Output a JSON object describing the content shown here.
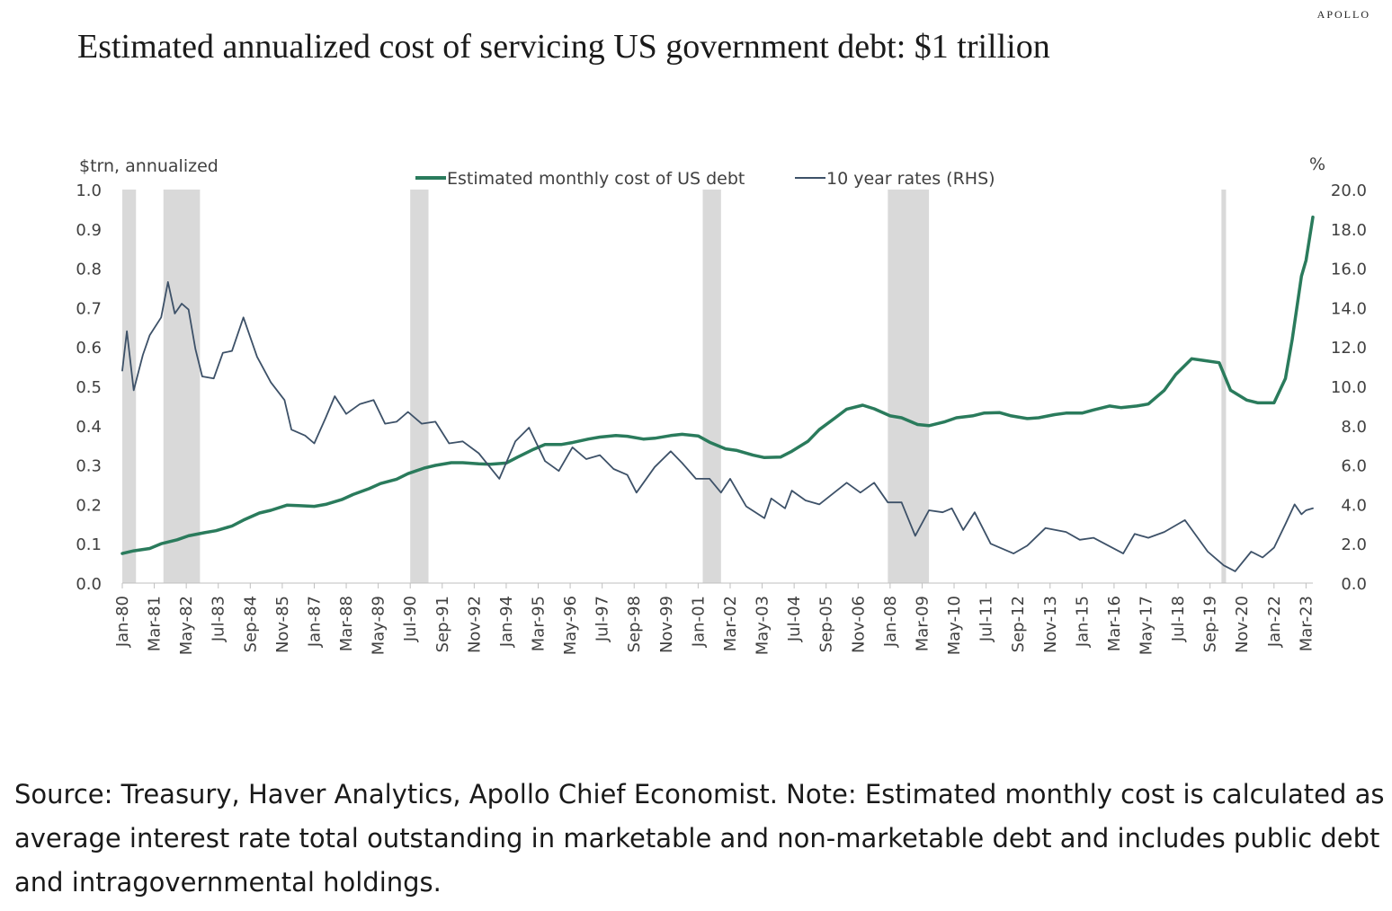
{
  "brand": "APOLLO",
  "title": "Estimated annualized cost of servicing US government debt: $1 trillion",
  "source_note": "Source: Treasury, Haver Analytics, Apollo Chief Economist. Note: Estimated monthly cost is calculated as average interest rate total outstanding in marketable and non-marketable debt and includes public debt and intragovernmental holdings.",
  "colors": {
    "cost_line": "#2a7b5c",
    "rate_line": "#3d5168",
    "recession": "#d9d9d9"
  },
  "chart_data": {
    "type": "line",
    "ylabel_left": "$trn, annualized",
    "ylabel_right": "%",
    "ylim_left": [
      0,
      1.0
    ],
    "ylim_right": [
      0,
      20
    ],
    "yticks_left": [
      "0.0",
      "0.1",
      "0.2",
      "0.3",
      "0.4",
      "0.5",
      "0.6",
      "0.7",
      "0.8",
      "0.9",
      "1.0"
    ],
    "yticks_right": [
      "0.0",
      "2.0",
      "4.0",
      "6.0",
      "8.0",
      "10.0",
      "12.0",
      "14.0",
      "16.0",
      "18.0",
      "20.0"
    ],
    "xlim": [
      "1980-01",
      "2023-06"
    ],
    "x_tick_labels": [
      {
        "date": "1980-01",
        "label": "Jan-80"
      },
      {
        "date": "1981-03",
        "label": "Mar-81"
      },
      {
        "date": "1982-05",
        "label": "May-82"
      },
      {
        "date": "1983-07",
        "label": "Jul-83"
      },
      {
        "date": "1984-09",
        "label": "Sep-84"
      },
      {
        "date": "1985-11",
        "label": "Nov-85"
      },
      {
        "date": "1987-01",
        "label": "Jan-87"
      },
      {
        "date": "1988-03",
        "label": "Mar-88"
      },
      {
        "date": "1989-05",
        "label": "May-89"
      },
      {
        "date": "1990-07",
        "label": "Jul-90"
      },
      {
        "date": "1991-09",
        "label": "Sep-91"
      },
      {
        "date": "1992-11",
        "label": "Nov-92"
      },
      {
        "date": "1994-01",
        "label": "Jan-94"
      },
      {
        "date": "1995-03",
        "label": "Mar-95"
      },
      {
        "date": "1996-05",
        "label": "May-96"
      },
      {
        "date": "1997-07",
        "label": "Jul-97"
      },
      {
        "date": "1998-09",
        "label": "Sep-98"
      },
      {
        "date": "1999-11",
        "label": "Nov-99"
      },
      {
        "date": "2001-01",
        "label": "Jan-01"
      },
      {
        "date": "2002-03",
        "label": "Mar-02"
      },
      {
        "date": "2003-05",
        "label": "May-03"
      },
      {
        "date": "2004-07",
        "label": "Jul-04"
      },
      {
        "date": "2005-09",
        "label": "Sep-05"
      },
      {
        "date": "2006-11",
        "label": "Nov-06"
      },
      {
        "date": "2008-01",
        "label": "Jan-08"
      },
      {
        "date": "2009-03",
        "label": "Mar-09"
      },
      {
        "date": "2010-05",
        "label": "May-10"
      },
      {
        "date": "2011-07",
        "label": "Jul-11"
      },
      {
        "date": "2012-09",
        "label": "Sep-12"
      },
      {
        "date": "2013-11",
        "label": "Nov-13"
      },
      {
        "date": "2015-01",
        "label": "Jan-15"
      },
      {
        "date": "2016-03",
        "label": "Mar-16"
      },
      {
        "date": "2017-05",
        "label": "May-17"
      },
      {
        "date": "2018-07",
        "label": "Jul-18"
      },
      {
        "date": "2019-09",
        "label": "Sep-19"
      },
      {
        "date": "2020-11",
        "label": "Nov-20"
      },
      {
        "date": "2022-01",
        "label": "Jan-22"
      },
      {
        "date": "2023-03",
        "label": "Mar-23"
      }
    ],
    "legend_position": "top-center",
    "grid": false,
    "recessions": [
      [
        "1980-01",
        "1980-07"
      ],
      [
        "1981-07",
        "1982-11"
      ],
      [
        "1990-07",
        "1991-03"
      ],
      [
        "2001-03",
        "2001-11"
      ],
      [
        "2007-12",
        "2009-06"
      ],
      [
        "2020-02",
        "2020-04"
      ]
    ],
    "series": [
      {
        "name": "Estimated monthly cost of US debt",
        "axis": "left",
        "color": "#2a7b5c",
        "points": [
          [
            "1980-01",
            0.075
          ],
          [
            "1980-06",
            0.082
          ],
          [
            "1981-01",
            0.088
          ],
          [
            "1981-06",
            0.1
          ],
          [
            "1982-01",
            0.11
          ],
          [
            "1982-06",
            0.12
          ],
          [
            "1983-01",
            0.128
          ],
          [
            "1983-06",
            0.133
          ],
          [
            "1984-01",
            0.145
          ],
          [
            "1984-06",
            0.16
          ],
          [
            "1985-01",
            0.178
          ],
          [
            "1985-06",
            0.185
          ],
          [
            "1986-01",
            0.198
          ],
          [
            "1986-06",
            0.197
          ],
          [
            "1987-01",
            0.195
          ],
          [
            "1987-06",
            0.2
          ],
          [
            "1988-01",
            0.212
          ],
          [
            "1988-06",
            0.225
          ],
          [
            "1989-01",
            0.24
          ],
          [
            "1989-06",
            0.253
          ],
          [
            "1990-01",
            0.264
          ],
          [
            "1990-06",
            0.278
          ],
          [
            "1991-01",
            0.292
          ],
          [
            "1991-06",
            0.299
          ],
          [
            "1992-01",
            0.306
          ],
          [
            "1992-06",
            0.306
          ],
          [
            "1993-01",
            0.303
          ],
          [
            "1993-06",
            0.302
          ],
          [
            "1994-01",
            0.305
          ],
          [
            "1994-06",
            0.32
          ],
          [
            "1995-01",
            0.34
          ],
          [
            "1995-06",
            0.352
          ],
          [
            "1996-01",
            0.352
          ],
          [
            "1996-06",
            0.357
          ],
          [
            "1997-01",
            0.366
          ],
          [
            "1997-06",
            0.371
          ],
          [
            "1998-01",
            0.375
          ],
          [
            "1998-06",
            0.373
          ],
          [
            "1999-01",
            0.366
          ],
          [
            "1999-06",
            0.368
          ],
          [
            "2000-01",
            0.375
          ],
          [
            "2000-06",
            0.378
          ],
          [
            "2001-01",
            0.374
          ],
          [
            "2001-06",
            0.358
          ],
          [
            "2002-01",
            0.341
          ],
          [
            "2002-06",
            0.337
          ],
          [
            "2003-01",
            0.325
          ],
          [
            "2003-06",
            0.319
          ],
          [
            "2004-01",
            0.32
          ],
          [
            "2004-06",
            0.335
          ],
          [
            "2005-01",
            0.36
          ],
          [
            "2005-06",
            0.39
          ],
          [
            "2006-01",
            0.42
          ],
          [
            "2006-06",
            0.442
          ],
          [
            "2007-01",
            0.452
          ],
          [
            "2007-06",
            0.443
          ],
          [
            "2008-01",
            0.425
          ],
          [
            "2008-06",
            0.42
          ],
          [
            "2009-01",
            0.403
          ],
          [
            "2009-06",
            0.4
          ],
          [
            "2010-01",
            0.41
          ],
          [
            "2010-06",
            0.42
          ],
          [
            "2011-01",
            0.425
          ],
          [
            "2011-06",
            0.432
          ],
          [
            "2012-01",
            0.433
          ],
          [
            "2012-06",
            0.425
          ],
          [
            "2013-01",
            0.418
          ],
          [
            "2013-06",
            0.42
          ],
          [
            "2014-01",
            0.428
          ],
          [
            "2014-06",
            0.432
          ],
          [
            "2015-01",
            0.432
          ],
          [
            "2015-06",
            0.44
          ],
          [
            "2016-01",
            0.45
          ],
          [
            "2016-06",
            0.446
          ],
          [
            "2017-01",
            0.45
          ],
          [
            "2017-06",
            0.455
          ],
          [
            "2018-01",
            0.49
          ],
          [
            "2018-06",
            0.53
          ],
          [
            "2019-01",
            0.57
          ],
          [
            "2019-06",
            0.566
          ],
          [
            "2020-01",
            0.56
          ],
          [
            "2020-06",
            0.49
          ],
          [
            "2021-01",
            0.465
          ],
          [
            "2021-06",
            0.458
          ],
          [
            "2022-01",
            0.458
          ],
          [
            "2022-06",
            0.52
          ],
          [
            "2022-09",
            0.62
          ],
          [
            "2023-01",
            0.78
          ],
          [
            "2023-03",
            0.82
          ],
          [
            "2023-06",
            0.93
          ]
        ]
      },
      {
        "name": "10 year rates (RHS)",
        "axis": "right",
        "color": "#3d5168",
        "points": [
          [
            "1980-01",
            10.8
          ],
          [
            "1980-03",
            12.8
          ],
          [
            "1980-06",
            9.8
          ],
          [
            "1980-10",
            11.6
          ],
          [
            "1981-01",
            12.6
          ],
          [
            "1981-06",
            13.5
          ],
          [
            "1981-09",
            15.3
          ],
          [
            "1981-12",
            13.7
          ],
          [
            "1982-03",
            14.2
          ],
          [
            "1982-06",
            13.9
          ],
          [
            "1982-09",
            11.9
          ],
          [
            "1982-12",
            10.5
          ],
          [
            "1983-05",
            10.4
          ],
          [
            "1983-09",
            11.7
          ],
          [
            "1984-01",
            11.8
          ],
          [
            "1984-06",
            13.5
          ],
          [
            "1984-12",
            11.5
          ],
          [
            "1985-06",
            10.2
          ],
          [
            "1985-12",
            9.3
          ],
          [
            "1986-03",
            7.8
          ],
          [
            "1986-09",
            7.5
          ],
          [
            "1987-01",
            7.1
          ],
          [
            "1987-06",
            8.4
          ],
          [
            "1987-10",
            9.5
          ],
          [
            "1988-03",
            8.6
          ],
          [
            "1988-09",
            9.1
          ],
          [
            "1989-03",
            9.3
          ],
          [
            "1989-08",
            8.1
          ],
          [
            "1990-01",
            8.2
          ],
          [
            "1990-06",
            8.7
          ],
          [
            "1990-12",
            8.1
          ],
          [
            "1991-06",
            8.2
          ],
          [
            "1991-12",
            7.1
          ],
          [
            "1992-06",
            7.2
          ],
          [
            "1993-01",
            6.6
          ],
          [
            "1993-10",
            5.3
          ],
          [
            "1994-05",
            7.2
          ],
          [
            "1994-11",
            7.9
          ],
          [
            "1995-06",
            6.2
          ],
          [
            "1995-12",
            5.7
          ],
          [
            "1996-06",
            6.9
          ],
          [
            "1996-12",
            6.3
          ],
          [
            "1997-06",
            6.5
          ],
          [
            "1997-12",
            5.8
          ],
          [
            "1998-06",
            5.5
          ],
          [
            "1998-10",
            4.6
          ],
          [
            "1999-06",
            5.9
          ],
          [
            "2000-01",
            6.7
          ],
          [
            "2000-06",
            6.1
          ],
          [
            "2000-12",
            5.3
          ],
          [
            "2001-06",
            5.3
          ],
          [
            "2001-11",
            4.6
          ],
          [
            "2002-03",
            5.3
          ],
          [
            "2002-10",
            3.9
          ],
          [
            "2003-06",
            3.3
          ],
          [
            "2003-09",
            4.3
          ],
          [
            "2004-03",
            3.8
          ],
          [
            "2004-06",
            4.7
          ],
          [
            "2004-12",
            4.2
          ],
          [
            "2005-06",
            4.0
          ],
          [
            "2006-06",
            5.1
          ],
          [
            "2006-12",
            4.6
          ],
          [
            "2007-06",
            5.1
          ],
          [
            "2007-12",
            4.1
          ],
          [
            "2008-06",
            4.1
          ],
          [
            "2008-12",
            2.4
          ],
          [
            "2009-06",
            3.7
          ],
          [
            "2009-12",
            3.6
          ],
          [
            "2010-04",
            3.8
          ],
          [
            "2010-09",
            2.7
          ],
          [
            "2011-02",
            3.6
          ],
          [
            "2011-09",
            2.0
          ],
          [
            "2012-07",
            1.5
          ],
          [
            "2013-01",
            1.9
          ],
          [
            "2013-09",
            2.8
          ],
          [
            "2014-06",
            2.6
          ],
          [
            "2014-12",
            2.2
          ],
          [
            "2015-06",
            2.3
          ],
          [
            "2016-07",
            1.5
          ],
          [
            "2016-12",
            2.5
          ],
          [
            "2017-06",
            2.3
          ],
          [
            "2018-01",
            2.6
          ],
          [
            "2018-10",
            3.2
          ],
          [
            "2019-08",
            1.6
          ],
          [
            "2020-03",
            0.9
          ],
          [
            "2020-08",
            0.6
          ],
          [
            "2021-03",
            1.6
          ],
          [
            "2021-08",
            1.3
          ],
          [
            "2022-01",
            1.8
          ],
          [
            "2022-06",
            3.0
          ],
          [
            "2022-10",
            4.0
          ],
          [
            "2023-01",
            3.5
          ],
          [
            "2023-03",
            3.7
          ],
          [
            "2023-06",
            3.8
          ]
        ]
      }
    ]
  }
}
